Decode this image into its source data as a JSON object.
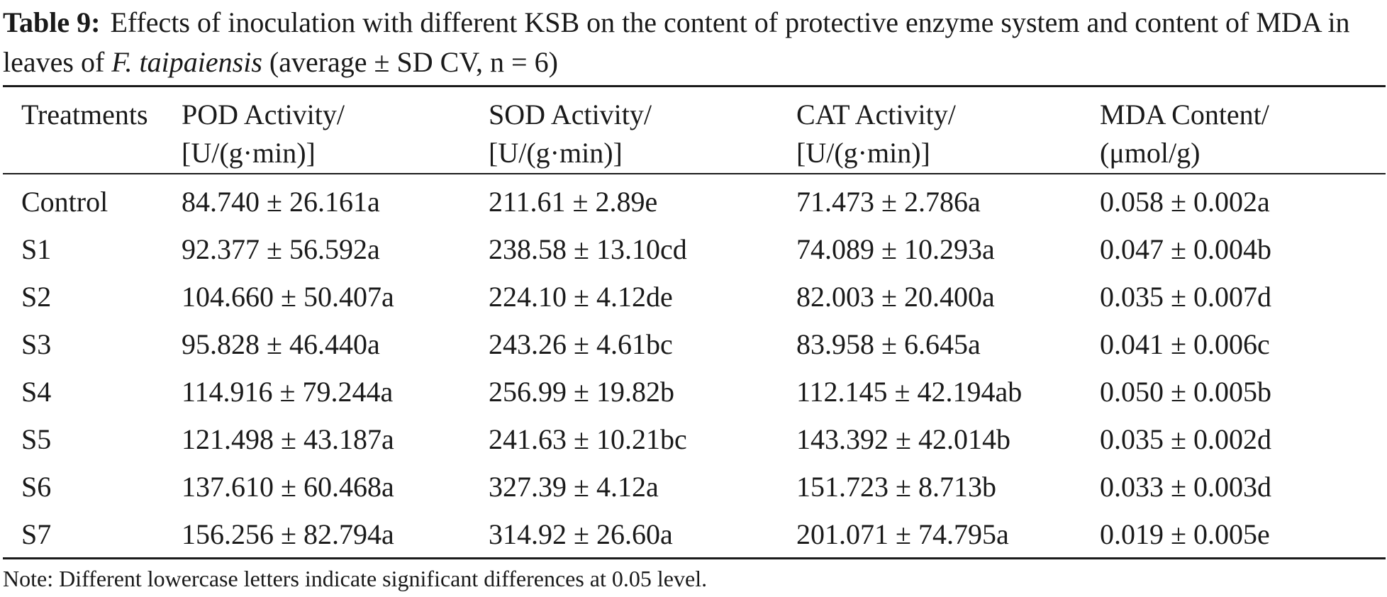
{
  "caption": {
    "label": "Table 9:",
    "text_before": "Effects of inoculation with different KSB on the content of protective enzyme system and content of MDA in leaves of",
    "species": "F. taipaiensis",
    "text_after": "(average ± SD CV, n = 6)"
  },
  "table": {
    "headers": [
      {
        "line1": "Treatments",
        "line2": ""
      },
      {
        "line1": "POD Activity/",
        "line2": "[U/(g·min)]"
      },
      {
        "line1": "SOD Activity/",
        "line2": "[U/(g·min)]"
      },
      {
        "line1": "CAT Activity/",
        "line2": "[U/(g·min)]"
      },
      {
        "line1": "MDA Content/",
        "line2": "(μmol/g)"
      }
    ],
    "rows": [
      [
        "Control",
        "84.740 ± 26.161a",
        "211.61 ± 2.89e",
        "71.473 ± 2.786a",
        "0.058 ± 0.002a"
      ],
      [
        "S1",
        "92.377 ± 56.592a",
        "238.58 ± 13.10cd",
        "74.089 ± 10.293a",
        "0.047 ± 0.004b"
      ],
      [
        "S2",
        "104.660 ± 50.407a",
        "224.10 ± 4.12de",
        "82.003 ± 20.400a",
        "0.035 ± 0.007d"
      ],
      [
        "S3",
        "95.828 ± 46.440a",
        "243.26 ± 4.61bc",
        "83.958 ± 6.645a",
        "0.041 ± 0.006c"
      ],
      [
        "S4",
        "114.916 ± 79.244a",
        "256.99 ± 19.82b",
        "112.145 ± 42.194ab",
        "0.050 ± 0.005b"
      ],
      [
        "S5",
        "121.498 ± 43.187a",
        "241.63 ± 10.21bc",
        "143.392 ± 42.014b",
        "0.035 ± 0.002d"
      ],
      [
        "S6",
        "137.610 ± 60.468a",
        "327.39 ± 4.12a",
        "151.723 ± 8.713b",
        "0.033 ± 0.003d"
      ],
      [
        "S7",
        "156.256 ± 82.794a",
        "314.92 ± 26.60a",
        "201.071 ± 74.795a",
        "0.019 ± 0.005e"
      ]
    ]
  },
  "note": "Note: Different lowercase letters indicate significant differences at 0.05 level."
}
